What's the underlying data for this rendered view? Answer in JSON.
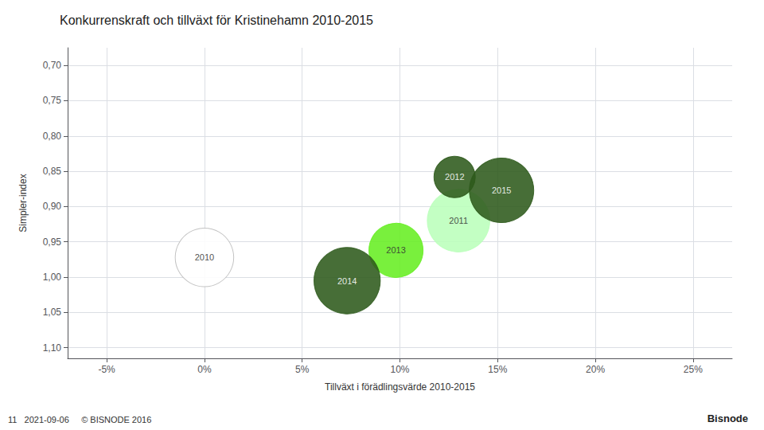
{
  "chart_data": {
    "type": "scatter",
    "title": "Konkurrenskraft och tillväxt för Kristinehamn 2010-2015",
    "xlabel": "Tillväxt i förädlingsvärde 2010-2015",
    "ylabel": "Simpler-index",
    "labels": [
      "2010",
      "2011",
      "2012",
      "2013",
      "2014",
      "2015"
    ],
    "x": [
      0.0,
      0.13,
      0.128,
      0.098,
      0.073,
      0.152
    ],
    "values": [
      0.972,
      0.92,
      0.858,
      0.962,
      1.005,
      0.877
    ],
    "sizes": [
      2800,
      3200,
      1400,
      2400,
      3600,
      3400
    ],
    "colors": [
      "#FFFFFF",
      "#BBFFBB",
      "#2D5A1B",
      "#66EE22",
      "#2D5A1B",
      "#2D5A1B"
    ],
    "xlim": [
      -0.07,
      0.27
    ],
    "ylim": [
      1.115,
      0.675
    ],
    "xticks": [
      {
        "value": -0.05,
        "label": "-5%"
      },
      {
        "value": 0.0,
        "label": "0%"
      },
      {
        "value": 0.05,
        "label": "5%"
      },
      {
        "value": 0.1,
        "label": "10%"
      },
      {
        "value": 0.15,
        "label": "15%"
      },
      {
        "value": 0.2,
        "label": "20%"
      },
      {
        "value": 0.25,
        "label": "25%"
      }
    ],
    "yticks": [
      {
        "value": 0.7,
        "label": "0,70"
      },
      {
        "value": 0.75,
        "label": "0,75"
      },
      {
        "value": 0.8,
        "label": "0,80"
      },
      {
        "value": 0.85,
        "label": "0,85"
      },
      {
        "value": 0.9,
        "label": "0,90"
      },
      {
        "value": 0.95,
        "label": "0,95"
      },
      {
        "value": 1.0,
        "label": "1,00"
      },
      {
        "value": 1.05,
        "label": "1,05"
      },
      {
        "value": 1.1,
        "label": "1,10"
      }
    ],
    "grid": true,
    "annotations": [
      "11   2021-09-06     © BISNODE 2016",
      "Bisnode"
    ]
  }
}
